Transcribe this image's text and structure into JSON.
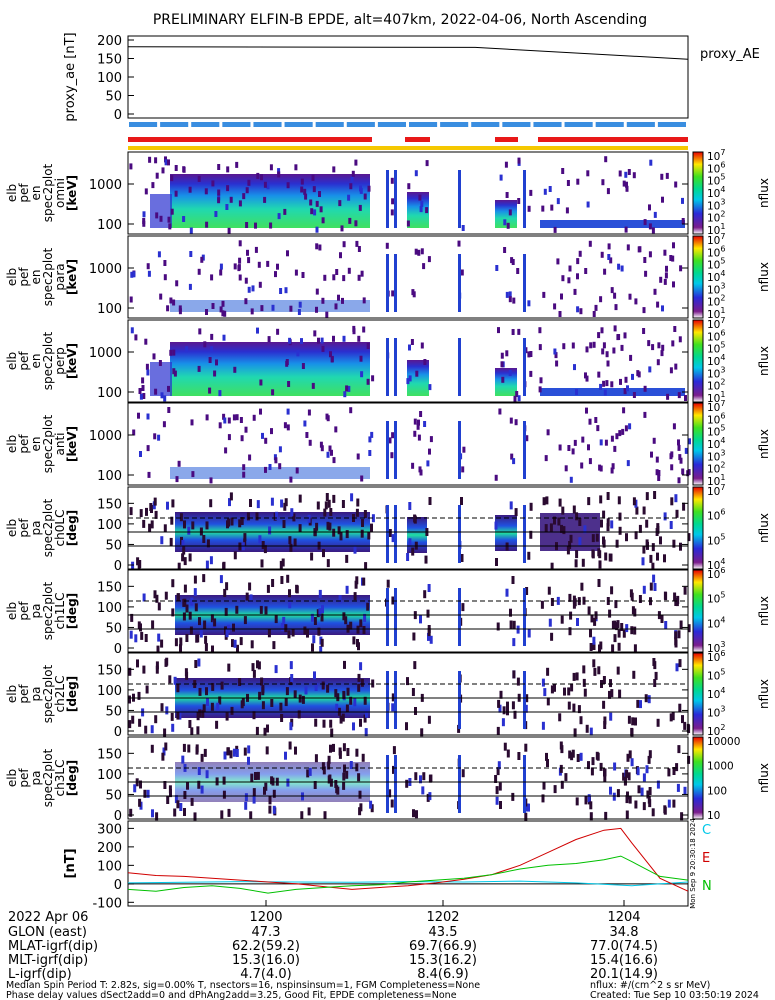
{
  "title": "PRELIMINARY ELFIN-B EPDE, alt=407km, 2022-04-06, North Ascending",
  "colors": {
    "bar_blue": "#3a8ee0",
    "bar_red": "#e81818",
    "bar_yellow": "#f5c800",
    "line_black": "#000000",
    "line_red": "#d00000",
    "line_green": "#00c000",
    "line_cyan": "#00c8e8"
  },
  "chart_data": [
    {
      "type": "line",
      "ylabel": "proxy_ae [nT]",
      "legend": "proxy_AE",
      "yticks": [
        "200",
        "150",
        "100",
        "50",
        "0"
      ],
      "ylim": [
        0,
        200
      ],
      "series": [
        {
          "name": "proxy_AE",
          "x": [
            0.0,
            0.62,
            1.0
          ],
          "values": [
            182,
            180,
            148
          ]
        }
      ]
    },
    {
      "type": "heatmap",
      "ylabel": [
        "elb",
        "pef",
        "en",
        "spec2plot",
        "omni",
        "[keV]"
      ],
      "yticks": [
        "1000",
        "100"
      ],
      "colorbar_label": "nflux",
      "colorbar_ticks": [
        "10^7",
        "10^6",
        "10^5",
        "10^4",
        "10^3",
        "10^2",
        "10^1"
      ]
    },
    {
      "type": "heatmap",
      "ylabel": [
        "elb",
        "pef",
        "en",
        "spec2plot",
        "para",
        "[keV]"
      ],
      "yticks": [
        "1000",
        "100"
      ],
      "colorbar_label": "nflux",
      "colorbar_ticks": [
        "10^7",
        "10^6",
        "10^5",
        "10^4",
        "10^3",
        "10^2",
        "10^1"
      ]
    },
    {
      "type": "heatmap",
      "ylabel": [
        "elb",
        "pef",
        "en",
        "spec2plot",
        "perp",
        "[keV]"
      ],
      "yticks": [
        "1000",
        "100"
      ],
      "colorbar_label": "nflux",
      "colorbar_ticks": [
        "10^7",
        "10^6",
        "10^5",
        "10^4",
        "10^3",
        "10^2",
        "10^1"
      ]
    },
    {
      "type": "heatmap",
      "ylabel": [
        "elb",
        "pef",
        "en",
        "spec2plot",
        "anti",
        "[keV]"
      ],
      "yticks": [
        "1000",
        "100"
      ],
      "colorbar_label": "nflux",
      "colorbar_ticks": [
        "10^7",
        "10^6",
        "10^5",
        "10^4",
        "10^3",
        "10^2",
        "10^1"
      ]
    },
    {
      "type": "heatmap",
      "ylabel": [
        "elb",
        "pef",
        "pa",
        "spec2plot",
        "ch0LC",
        "[deg]"
      ],
      "yticks": [
        "150",
        "100",
        "50",
        "0"
      ],
      "colorbar_label": "nflux",
      "colorbar_ticks": [
        "10^7",
        "10^6",
        "10^5",
        "10^4"
      ]
    },
    {
      "type": "heatmap",
      "ylabel": [
        "elb",
        "pef",
        "pa",
        "spec2plot",
        "ch1LC",
        "[deg]"
      ],
      "yticks": [
        "150",
        "100",
        "50",
        "0"
      ],
      "colorbar_label": "nflux",
      "colorbar_ticks": [
        "10^6",
        "10^5",
        "10^4",
        "10^3"
      ]
    },
    {
      "type": "heatmap",
      "ylabel": [
        "elb",
        "pef",
        "pa",
        "spec2plot",
        "ch2LC",
        "[deg]"
      ],
      "yticks": [
        "150",
        "100",
        "50",
        "0"
      ],
      "colorbar_label": "nflux",
      "colorbar_ticks": [
        "10^6",
        "10^5",
        "10^4",
        "10^3",
        "10^2"
      ]
    },
    {
      "type": "heatmap",
      "ylabel": [
        "elb",
        "pef",
        "pa",
        "spec2plot",
        "ch3LC",
        "[deg]"
      ],
      "yticks": [
        "150",
        "100",
        "50",
        "0"
      ],
      "colorbar_label": "nflux",
      "colorbar_ticks": [
        "10000",
        "1000",
        "100",
        "10"
      ]
    },
    {
      "type": "line",
      "ylabel": "[nT]",
      "yticks": [
        "300",
        "200",
        "100",
        "0",
        "-100"
      ],
      "ylim": [
        -120,
        340
      ],
      "legend": [
        "C",
        "E",
        "N"
      ],
      "side_text": "Mon Sep  9 20:30:18 2024",
      "series": [
        {
          "name": "C",
          "x": [
            0.0,
            0.1,
            0.2,
            0.3,
            0.4,
            0.5,
            0.6,
            0.7,
            0.8,
            0.9,
            1.0
          ],
          "values": [
            5,
            8,
            12,
            10,
            8,
            12,
            10,
            15,
            5,
            -10,
            10
          ]
        },
        {
          "name": "E",
          "x": [
            0.0,
            0.05,
            0.1,
            0.15,
            0.2,
            0.25,
            0.3,
            0.35,
            0.4,
            0.45,
            0.5,
            0.55,
            0.6,
            0.65,
            0.7,
            0.75,
            0.8,
            0.85,
            0.88,
            0.9,
            0.95,
            1.0
          ],
          "values": [
            60,
            45,
            40,
            30,
            20,
            10,
            0,
            -15,
            -30,
            -20,
            -10,
            5,
            25,
            50,
            100,
            170,
            240,
            290,
            300,
            220,
            30,
            -40
          ]
        },
        {
          "name": "N",
          "x": [
            0.0,
            0.05,
            0.1,
            0.15,
            0.2,
            0.25,
            0.3,
            0.35,
            0.4,
            0.45,
            0.5,
            0.55,
            0.6,
            0.65,
            0.7,
            0.75,
            0.8,
            0.85,
            0.88,
            0.9,
            0.95,
            1.0
          ],
          "values": [
            -30,
            -40,
            -20,
            -10,
            -25,
            -50,
            -30,
            -20,
            -10,
            -5,
            10,
            20,
            30,
            50,
            80,
            100,
            110,
            130,
            150,
            120,
            40,
            20
          ]
        }
      ]
    }
  ],
  "xaxis": {
    "date_label": "2022 Apr 06",
    "ticks": [
      "1200",
      "1202",
      "1204"
    ],
    "rows": [
      {
        "label": "GLON (east)",
        "values": [
          "47.3",
          "43.5",
          "34.8"
        ]
      },
      {
        "label": "MLAT-igrf(dip)",
        "values": [
          "62.2(59.2)",
          "69.7(66.9)",
          "77.0(74.5)"
        ]
      },
      {
        "label": "MLT-igrf(dip)",
        "values": [
          "15.3(16.0)",
          "15.3(16.2)",
          "15.4(16.6)"
        ]
      },
      {
        "label": "L-igrf(dip)",
        "values": [
          "4.7(4.0)",
          "8.4(6.9)",
          "20.1(14.9)"
        ]
      }
    ]
  },
  "footer": {
    "line1_left": "Median Spin Period T: 2.82s, sig=0.00% T, nsectors=16, nspinsinsum=1, FGM Completeness=None",
    "line2_left": "Phase delay values dSect2add=0 and dPhAng2add=3.25, Good Fit, EPDE completeness=None",
    "line1_right": "nflux: #/(cm^2 s sr MeV)",
    "line2_right": "Created: Tue Sep 10 03:50:19 2024"
  }
}
